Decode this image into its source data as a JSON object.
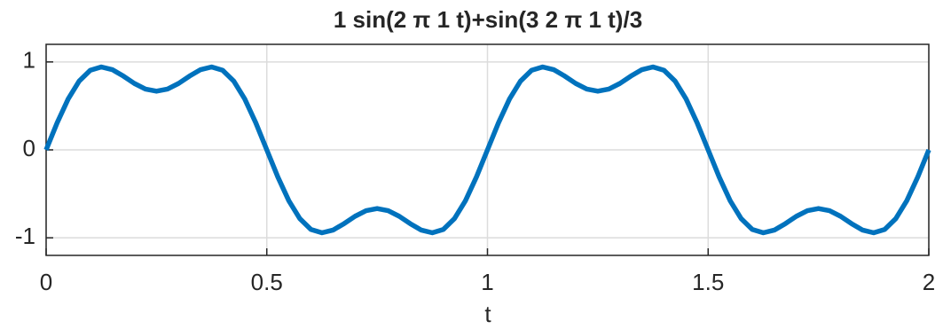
{
  "chart_data": {
    "type": "line",
    "title": "1 sin(2 π 1 t)+sin(3 2 π 1 t)/3",
    "x_label": "t",
    "x": [
      0,
      0.025,
      0.05,
      0.075,
      0.1,
      0.125,
      0.15,
      0.175,
      0.2,
      0.225,
      0.25,
      0.275,
      0.3,
      0.325,
      0.35,
      0.375,
      0.4,
      0.425,
      0.45,
      0.475,
      0.5,
      0.525,
      0.55,
      0.575,
      0.6,
      0.625,
      0.65,
      0.675,
      0.7,
      0.725,
      0.75,
      0.775,
      0.8,
      0.825,
      0.85,
      0.875,
      0.9,
      0.925,
      0.95,
      0.975,
      1,
      1.025,
      1.05,
      1.075,
      1.1,
      1.125,
      1.15,
      1.175,
      1.2,
      1.225,
      1.25,
      1.275,
      1.3,
      1.325,
      1.35,
      1.375,
      1.4,
      1.425,
      1.45,
      1.475,
      1.5,
      1.525,
      1.55,
      1.575,
      1.6,
      1.625,
      1.65,
      1.675,
      1.7,
      1.725,
      1.75,
      1.775,
      1.8,
      1.825,
      1.85,
      1.875,
      1.9,
      1.925,
      1.95,
      1.975,
      2
    ],
    "series": [
      {
        "color": "#0072bd",
        "values": [
          0,
          0.308,
          0.579,
          0.783,
          0.905,
          0.943,
          0.912,
          0.839,
          0.755,
          0.691,
          0.667,
          0.691,
          0.755,
          0.839,
          0.912,
          0.943,
          0.905,
          0.783,
          0.579,
          0.308,
          0,
          -0.308,
          -0.579,
          -0.783,
          -0.905,
          -0.943,
          -0.912,
          -0.839,
          -0.755,
          -0.691,
          -0.667,
          -0.691,
          -0.755,
          -0.839,
          -0.912,
          -0.943,
          -0.905,
          -0.783,
          -0.579,
          -0.308,
          0,
          0.308,
          0.579,
          0.783,
          0.905,
          0.943,
          0.912,
          0.839,
          0.755,
          0.691,
          0.667,
          0.691,
          0.755,
          0.839,
          0.912,
          0.943,
          0.905,
          0.783,
          0.579,
          0.308,
          0,
          -0.308,
          -0.579,
          -0.783,
          -0.905,
          -0.943,
          -0.912,
          -0.839,
          -0.755,
          -0.691,
          -0.667,
          -0.691,
          -0.755,
          -0.839,
          -0.912,
          -0.943,
          -0.905,
          -0.783,
          -0.579,
          -0.308,
          0
        ]
      }
    ],
    "xlim": [
      0,
      2
    ],
    "xticks": [
      0,
      0.5,
      1,
      1.5,
      2
    ],
    "ylim": [
      -1.2,
      1.2
    ],
    "yticks": [
      -1,
      0,
      1
    ],
    "grid": true
  }
}
